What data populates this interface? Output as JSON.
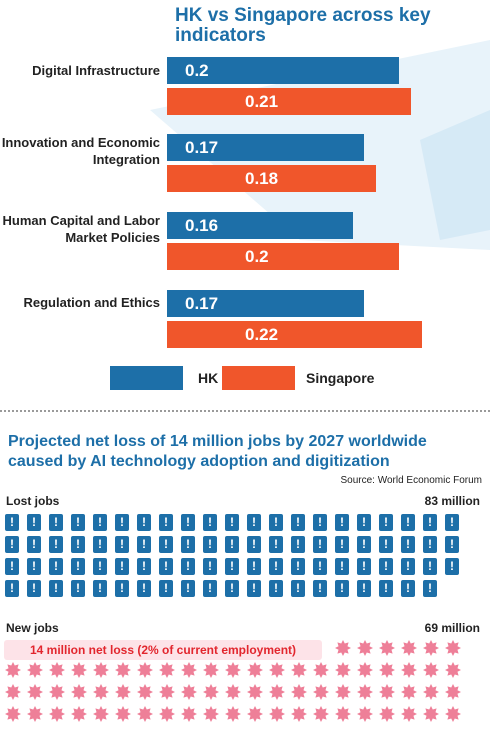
{
  "chart_data": [
    {
      "type": "bar",
      "title": "HK vs Singapore across key indicators",
      "categories": [
        "Digital Infrastructure",
        "Innovation and Economic Integration",
        "Human Capital and Labor Market Policies",
        "Regulation and Ethics"
      ],
      "series": [
        {
          "name": "HK",
          "values": [
            0.2,
            0.17,
            0.16,
            0.17
          ],
          "color": "#1d6fa8"
        },
        {
          "name": "Singapore",
          "values": [
            0.21,
            0.18,
            0.2,
            0.22
          ],
          "color": "#f0562b"
        }
      ],
      "legend": "bottom",
      "grid": false
    },
    {
      "type": "pictogram",
      "title": "Projected net loss of 14 million jobs by 2027 worldwide caused by AI technology adoption and digitization",
      "source": "Source: World Economic Forum",
      "series": [
        {
          "name": "Lost jobs",
          "value_label": "83 million",
          "value": 83,
          "icon_count": 83,
          "color": "#1d6fa8"
        },
        {
          "name": "New jobs",
          "value_label": "69 million",
          "value": 69,
          "icon_count": 69,
          "color": "#ee7f98"
        }
      ],
      "annotation": "14 million net loss (2% of current employment)"
    }
  ]
}
